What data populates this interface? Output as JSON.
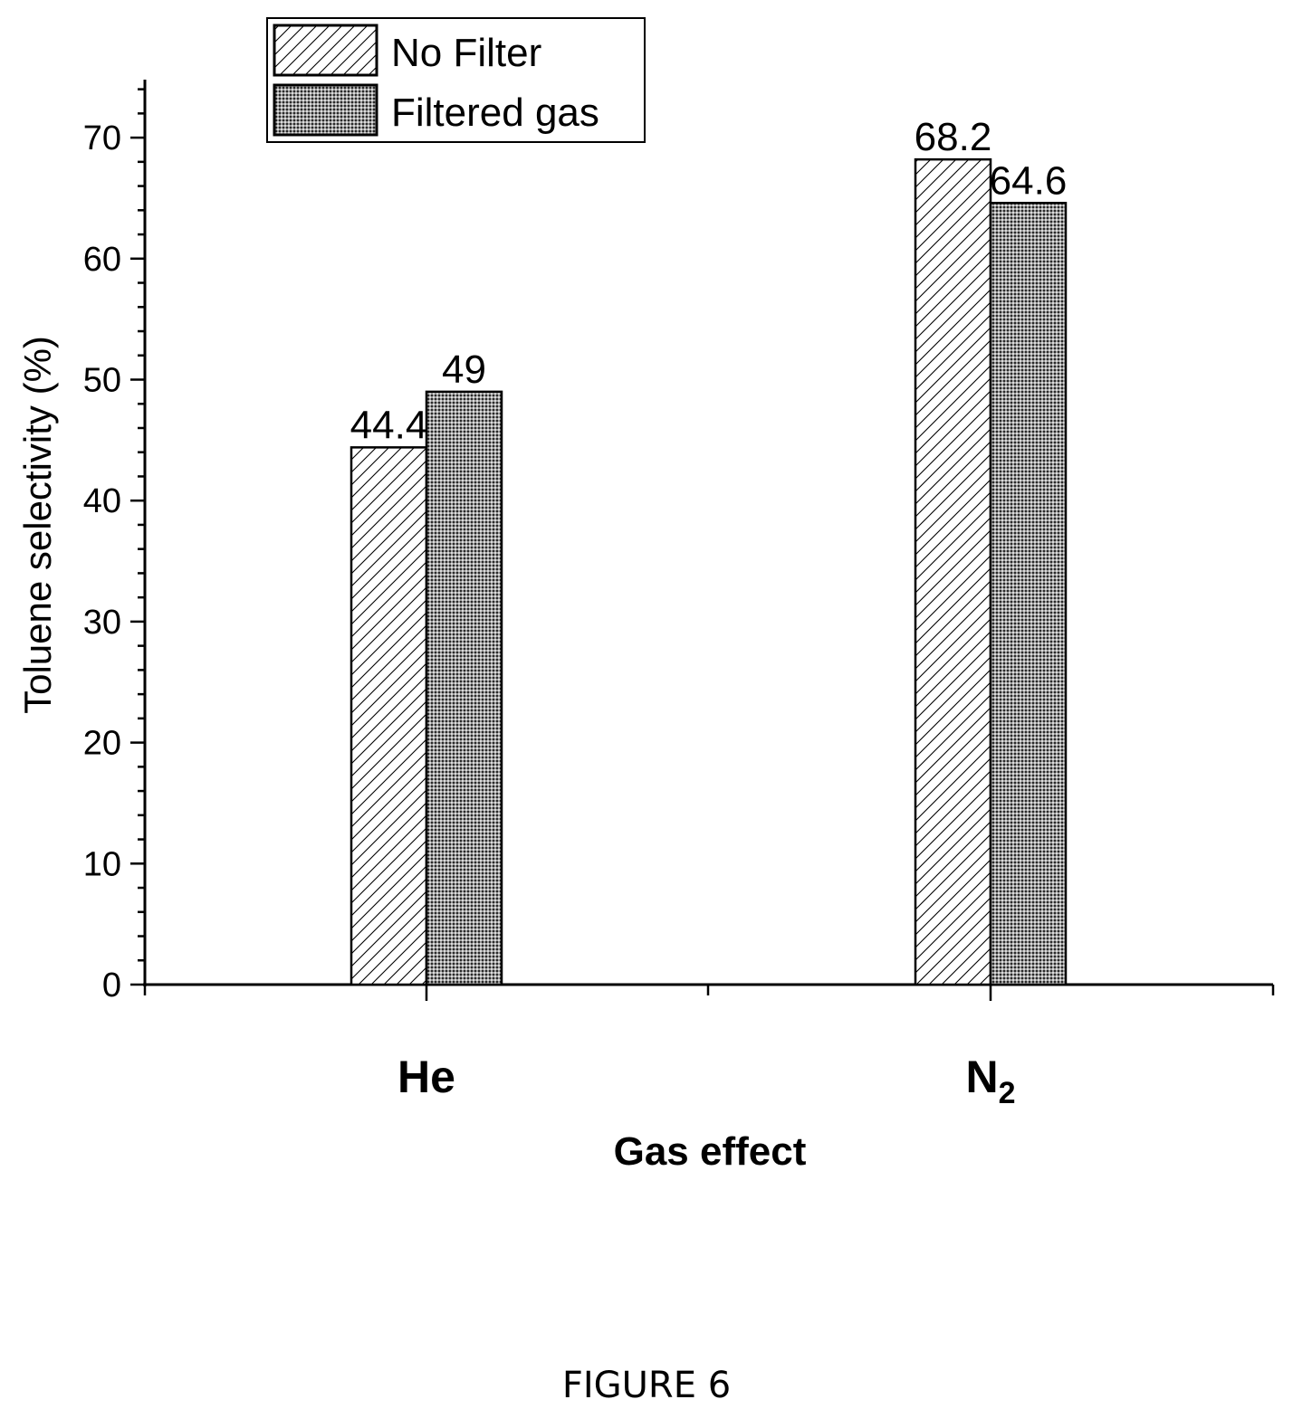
{
  "chart_data": {
    "type": "bar",
    "categories": [
      "He",
      "N2"
    ],
    "category_labels": [
      {
        "base": "He",
        "subscript": ""
      },
      {
        "base": "N",
        "subscript": "2"
      }
    ],
    "series": [
      {
        "name": "No Filter",
        "values": [
          44.4,
          68.2
        ],
        "data_labels": [
          "44.4",
          "68.2"
        ],
        "pattern": "diagonal-hatch"
      },
      {
        "name": "Filtered gas",
        "values": [
          49,
          64.6
        ],
        "data_labels": [
          "49",
          "64.6"
        ],
        "pattern": "dense-dot-crosshatch"
      }
    ],
    "xlabel": "Gas effect",
    "ylabel": "Toluene selectivity (%)",
    "ylim": [
      0,
      75
    ],
    "yticks": [
      0,
      10,
      20,
      30,
      40,
      50,
      60,
      70
    ],
    "grid": false,
    "legend_position": "top-left"
  },
  "figure_caption": "FIGURE 6",
  "colors": {
    "axis": "#000000",
    "bar_outline": "#000000",
    "background": "#ffffff"
  }
}
